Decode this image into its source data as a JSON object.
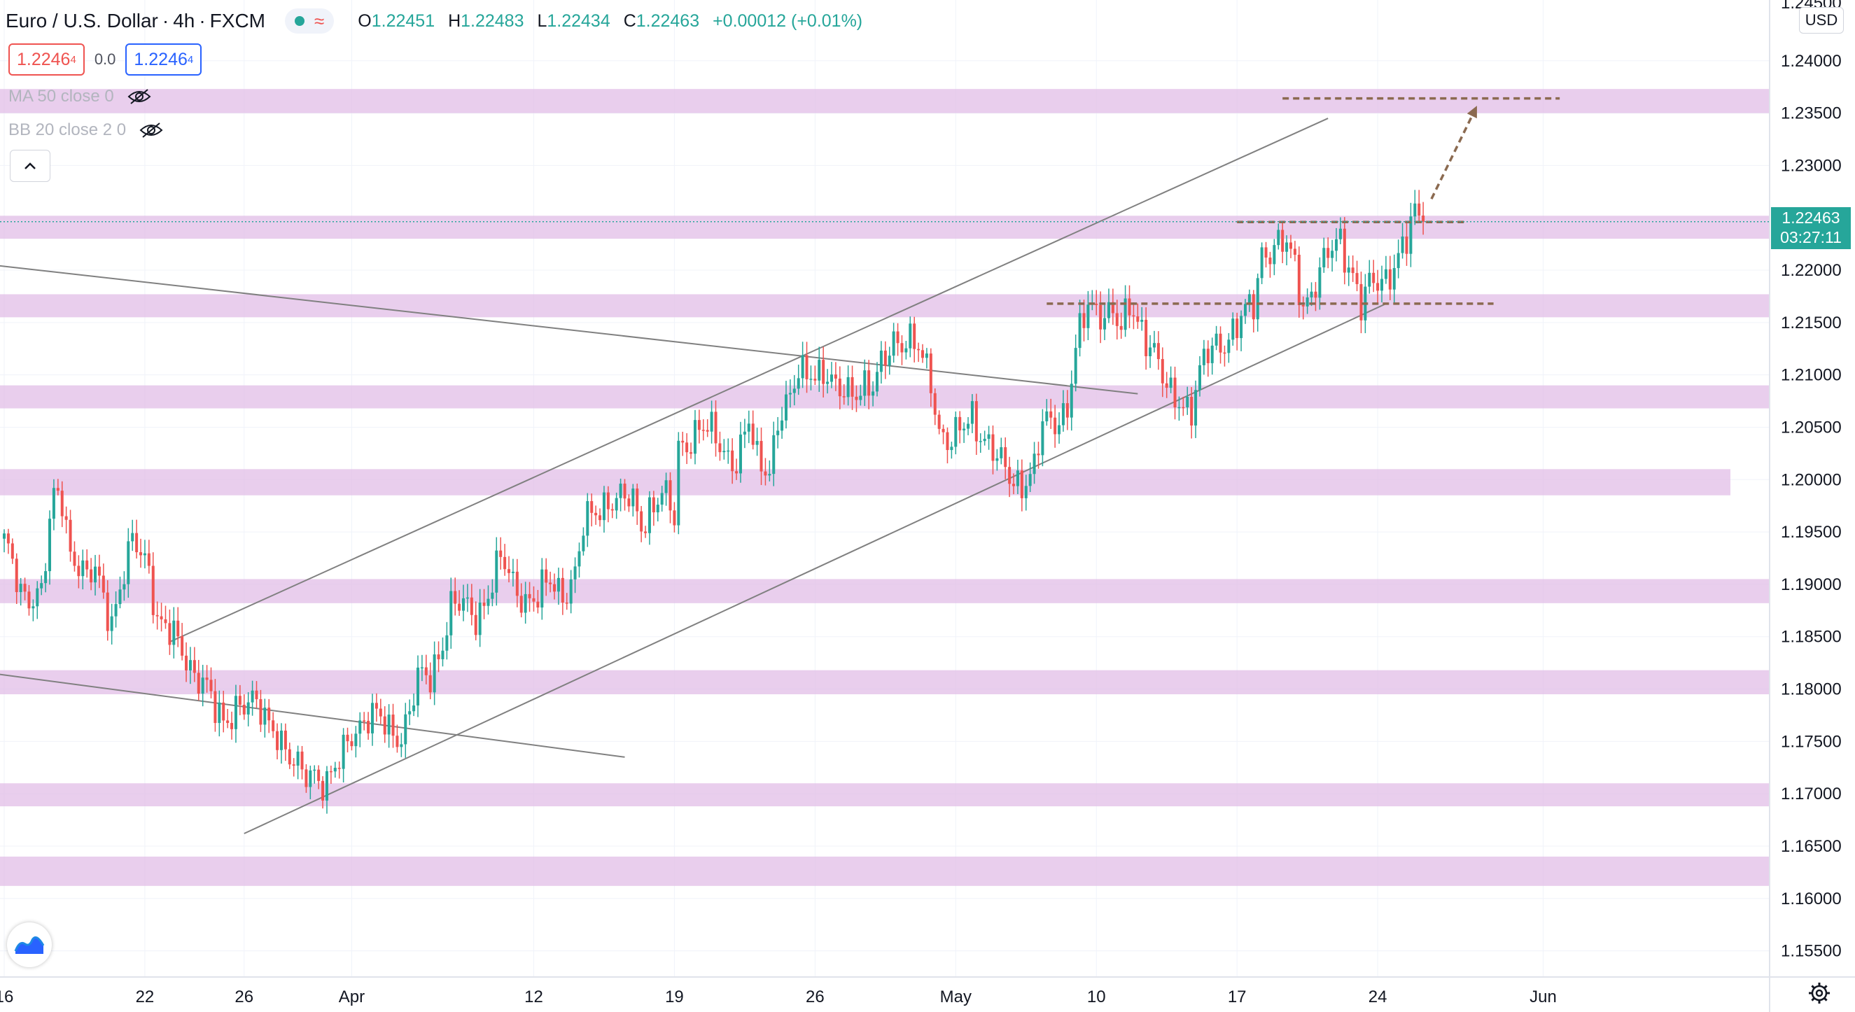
{
  "header": {
    "symbol": "Euro / U.S. Dollar",
    "interval": "4h",
    "exchange": "FXCM",
    "open_label": "O",
    "open": "1.22451",
    "high_label": "H",
    "high": "1.22483",
    "low_label": "L",
    "low": "1.22434",
    "close_label": "C",
    "close": "1.22463",
    "change": "+0.00012 (+0.01%)"
  },
  "trade": {
    "sell_price": "1.2246",
    "sell_sup": "4",
    "spread": "0.0",
    "buy_price": "1.2246",
    "buy_sup": "4"
  },
  "indicators": [
    {
      "label": "MA 50 close 0",
      "icon": "eye-off-icon"
    },
    {
      "label": "BB 20 close 2 0",
      "icon": "eye-off-icon"
    }
  ],
  "price_axis": {
    "currency": "USD",
    "current_price": "1.22463",
    "countdown": "03:27:11",
    "top_partial_label": "1.24500"
  },
  "colors": {
    "up": "#26a69a",
    "down": "#ef5350",
    "zone": "#e1bee7",
    "trendline": "#808080",
    "level": "#8b6a50"
  },
  "chart_data": {
    "type": "candlestick",
    "title": "Euro / U.S. Dollar, 4h, FXCM",
    "ylim": [
      1.1525,
      1.2458
    ],
    "y_ticks": [
      "1.24000",
      "1.23500",
      "1.23000",
      "1.22500",
      "1.22000",
      "1.21500",
      "1.21000",
      "1.20500",
      "1.20000",
      "1.19500",
      "1.19000",
      "1.18500",
      "1.18000",
      "1.17500",
      "1.17000",
      "1.16500",
      "1.16000",
      "1.15500"
    ],
    "x_ticks": [
      {
        "label": "16",
        "index": 0
      },
      {
        "label": "22",
        "index": 34
      },
      {
        "label": "26",
        "index": 58
      },
      {
        "label": "Apr",
        "index": 84
      },
      {
        "label": "12",
        "index": 128
      },
      {
        "label": "19",
        "index": 162
      },
      {
        "label": "26",
        "index": 196
      },
      {
        "label": "May",
        "index": 230
      },
      {
        "label": "10",
        "index": 264
      },
      {
        "label": "17",
        "index": 298
      },
      {
        "label": "24",
        "index": 332
      },
      {
        "label": "Jun",
        "index": 372
      }
    ],
    "candle_count": 344,
    "anchors": [
      [
        0,
        1.1935
      ],
      [
        4,
        1.1895
      ],
      [
        9,
        1.189
      ],
      [
        12,
        1.198
      ],
      [
        14,
        1.1985
      ],
      [
        16,
        1.1935
      ],
      [
        18,
        1.192
      ],
      [
        20,
        1.19
      ],
      [
        22,
        1.191
      ],
      [
        24,
        1.189
      ],
      [
        26,
        1.187
      ],
      [
        29,
        1.191
      ],
      [
        31,
        1.1935
      ],
      [
        33,
        1.193
      ],
      [
        35,
        1.192
      ],
      [
        37,
        1.187
      ],
      [
        40,
        1.185
      ],
      [
        44,
        1.183
      ],
      [
        48,
        1.181
      ],
      [
        51,
        1.1775
      ],
      [
        53,
        1.1765
      ],
      [
        56,
        1.179
      ],
      [
        59,
        1.1785
      ],
      [
        62,
        1.1775
      ],
      [
        66,
        1.1765
      ],
      [
        69,
        1.173
      ],
      [
        72,
        1.1715
      ],
      [
        75,
        1.1725
      ],
      [
        78,
        1.171
      ],
      [
        81,
        1.1725
      ],
      [
        84,
        1.176
      ],
      [
        87,
        1.1775
      ],
      [
        90,
        1.177
      ],
      [
        93,
        1.176
      ],
      [
        96,
        1.176
      ],
      [
        98,
        1.178
      ],
      [
        100,
        1.1805
      ],
      [
        103,
        1.181
      ],
      [
        106,
        1.185
      ],
      [
        108,
        1.188
      ],
      [
        111,
        1.1875
      ],
      [
        114,
        1.187
      ],
      [
        117,
        1.1895
      ],
      [
        120,
        1.192
      ],
      [
        123,
        1.19
      ],
      [
        126,
        1.189
      ],
      [
        129,
        1.1885
      ],
      [
        132,
        1.19
      ],
      [
        135,
        1.1895
      ],
      [
        138,
        1.191
      ],
      [
        140,
        1.195
      ],
      [
        143,
        1.197
      ],
      [
        146,
        1.1985
      ],
      [
        149,
        1.198
      ],
      [
        152,
        1.1975
      ],
      [
        154,
        1.196
      ],
      [
        156,
        1.1975
      ],
      [
        159,
        1.1985
      ],
      [
        162,
        1.196
      ],
      [
        163,
        1.203
      ],
      [
        165,
        1.204
      ],
      [
        168,
        1.205
      ],
      [
        171,
        1.204
      ],
      [
        174,
        1.203
      ],
      [
        177,
        1.202
      ],
      [
        180,
        1.205
      ],
      [
        182,
        1.2015
      ],
      [
        185,
        1.2015
      ],
      [
        187,
        1.206
      ],
      [
        190,
        1.207
      ],
      [
        192,
        1.21
      ],
      [
        195,
        1.211
      ],
      [
        198,
        1.21
      ],
      [
        201,
        1.208
      ],
      [
        204,
        1.209
      ],
      [
        207,
        1.209
      ],
      [
        210,
        1.208
      ],
      [
        213,
        1.212
      ],
      [
        215,
        1.214
      ],
      [
        218,
        1.213
      ],
      [
        221,
        1.212
      ],
      [
        224,
        1.21
      ],
      [
        226,
        1.205
      ],
      [
        229,
        1.203
      ],
      [
        232,
        1.205
      ],
      [
        234,
        1.2065
      ],
      [
        237,
        1.204
      ],
      [
        240,
        1.2015
      ],
      [
        243,
        1.2005
      ],
      [
        246,
        1.2
      ],
      [
        249,
        1.2005
      ],
      [
        251,
        1.205
      ],
      [
        254,
        1.206
      ],
      [
        257,
        1.207
      ],
      [
        259,
        1.212
      ],
      [
        262,
        1.2165
      ],
      [
        265,
        1.2165
      ],
      [
        268,
        1.216
      ],
      [
        270,
        1.2135
      ],
      [
        272,
        1.2165
      ],
      [
        275,
        1.215
      ],
      [
        278,
        1.212
      ],
      [
        281,
        1.208
      ],
      [
        284,
        1.208
      ],
      [
        287,
        1.207
      ],
      [
        290,
        1.211
      ],
      [
        293,
        1.213
      ],
      [
        296,
        1.214
      ],
      [
        299,
        1.215
      ],
      [
        302,
        1.2165
      ],
      [
        304,
        1.222
      ],
      [
        307,
        1.2225
      ],
      [
        310,
        1.222
      ],
      [
        312,
        1.22
      ],
      [
        314,
        1.217
      ],
      [
        317,
        1.219
      ],
      [
        320,
        1.221
      ],
      [
        323,
        1.223
      ],
      [
        326,
        1.22
      ],
      [
        328,
        1.2165
      ],
      [
        330,
        1.218
      ],
      [
        333,
        1.219
      ],
      [
        336,
        1.221
      ],
      [
        339,
        1.2225
      ],
      [
        341,
        1.225
      ],
      [
        343,
        1.22463
      ]
    ],
    "zones": [
      {
        "from": 1.235,
        "to": 1.2373,
        "extends": "to-axis"
      },
      {
        "from": 1.223,
        "to": 1.2252,
        "extends": "to-axis"
      },
      {
        "from": 1.2155,
        "to": 1.2177,
        "extends": "to-axis"
      },
      {
        "from": 1.2068,
        "to": 1.209,
        "extends": "to-axis"
      },
      {
        "from": 1.1985,
        "to": 1.201,
        "extends": "partial"
      },
      {
        "from": 1.1882,
        "to": 1.1905,
        "extends": "to-axis"
      },
      {
        "from": 1.1795,
        "to": 1.1818,
        "extends": "to-axis"
      },
      {
        "from": 1.1688,
        "to": 1.171,
        "extends": "to-axis"
      },
      {
        "from": 1.1612,
        "to": 1.164,
        "extends": "to-axis"
      }
    ],
    "trendlines": [
      {
        "name": "upper-channel",
        "from": [
          40,
          1.1845
        ],
        "to": [
          320,
          1.2345
        ]
      },
      {
        "name": "lower-channel",
        "from": [
          58,
          1.1662
        ],
        "to": [
          334,
          1.2168
        ]
      },
      {
        "name": "falling-line-1",
        "from": [
          -3,
          1.2205
        ],
        "to": [
          274,
          1.2082
        ]
      },
      {
        "name": "falling-line-2",
        "from": [
          -3,
          1.1815
        ],
        "to": [
          150,
          1.1735
        ]
      }
    ],
    "levels": [
      {
        "price": 1.2364,
        "from": 309,
        "to": 376
      },
      {
        "price": 1.2246,
        "from": 298,
        "to": 353
      },
      {
        "price": 1.2168,
        "from": 252,
        "to": 360
      }
    ],
    "projection": {
      "from": [
        345,
        1.2268
      ],
      "to": [
        356,
        1.2357
      ]
    },
    "current_price": 1.22463
  }
}
